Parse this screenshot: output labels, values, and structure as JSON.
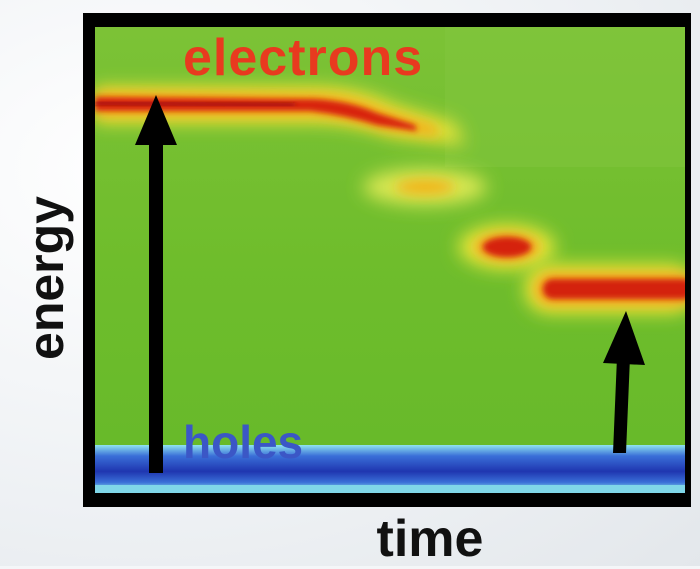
{
  "figure": {
    "electrons_label": "electrons",
    "holes_label": "holes",
    "y_axis_label": "energy",
    "x_axis_label": "time"
  },
  "colors": {
    "background_field": "#6dbb2a",
    "electron_band_core": "#d21f10",
    "electron_band_edge": "#f5e21a",
    "hole_band": "#2a3fb5",
    "hole_band_edge": "#7fd6e8",
    "arrow": "#000000",
    "frame": "#000000",
    "electrons_text": "#e83a1f",
    "holes_text": "#3b57c6"
  },
  "icons": {
    "excitation_arrow_left": "arrow-up-icon",
    "excitation_arrow_right": "arrow-up-icon"
  }
}
